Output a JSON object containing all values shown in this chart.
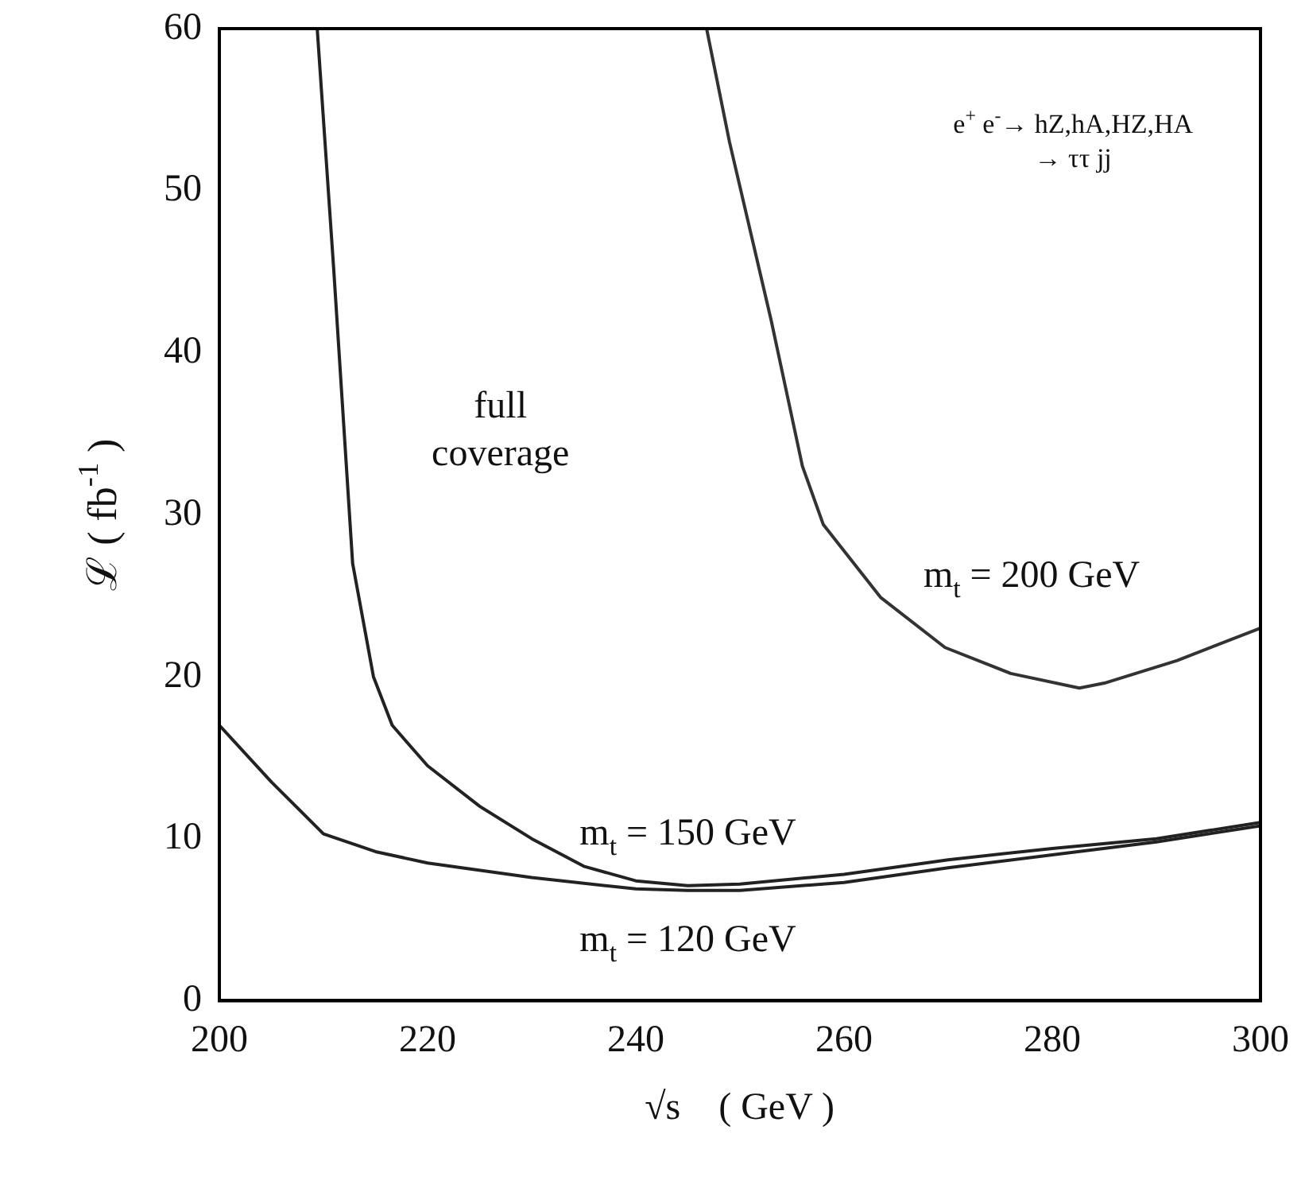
{
  "chart_data": {
    "type": "line",
    "xlabel": "√s    ( GeV )",
    "ylabel": "ℒ ( fb$^{-1}$ )",
    "xlim": [
      200,
      300
    ],
    "xticks": [
      200,
      220,
      240,
      260,
      280,
      300
    ],
    "ylim": [
      0,
      60
    ],
    "yticks": [
      0,
      10,
      20,
      30,
      40,
      50,
      60
    ],
    "grid": false,
    "legend": false,
    "marker": "none",
    "line_style": "solid",
    "series": [
      {
        "name": "m$_{t}$ = 200 GeV",
        "color": "#333333",
        "x": [
          246.8,
          249,
          253,
          256,
          258,
          263.5,
          269.7,
          276,
          282.6,
          285,
          292,
          300
        ],
        "values": [
          60,
          53,
          42,
          33,
          29.4,
          24.9,
          21.8,
          20.2,
          19.3,
          19.6,
          21,
          23
        ]
      },
      {
        "name": "m$_{t}$ = 150 GeV",
        "color": "#222222",
        "x": [
          209.4,
          211,
          212.8,
          214.8,
          216.6,
          220,
          225,
          230,
          235,
          240,
          245,
          250,
          260,
          270,
          280,
          290,
          300
        ],
        "values": [
          60,
          45,
          27,
          20,
          17,
          14.5,
          12,
          10,
          8.3,
          7.4,
          7.1,
          7.2,
          7.8,
          8.7,
          9.4,
          10,
          11
        ]
      },
      {
        "name": "m$_{t}$ = 120 GeV",
        "color": "#222222",
        "x": [
          200,
          205,
          210,
          215,
          220,
          230,
          240,
          245,
          250,
          260,
          270,
          280,
          290,
          300
        ],
        "values": [
          17,
          13.5,
          10.3,
          9.2,
          8.5,
          7.6,
          6.9,
          6.8,
          6.8,
          7.3,
          8.2,
          9,
          9.8,
          10.8
        ]
      }
    ],
    "annotations": [
      "e$^{+}$ e$^{-}$→ hZ,hA,HZ,HA\n→ ττ jj",
      "full\ncoverage"
    ]
  }
}
